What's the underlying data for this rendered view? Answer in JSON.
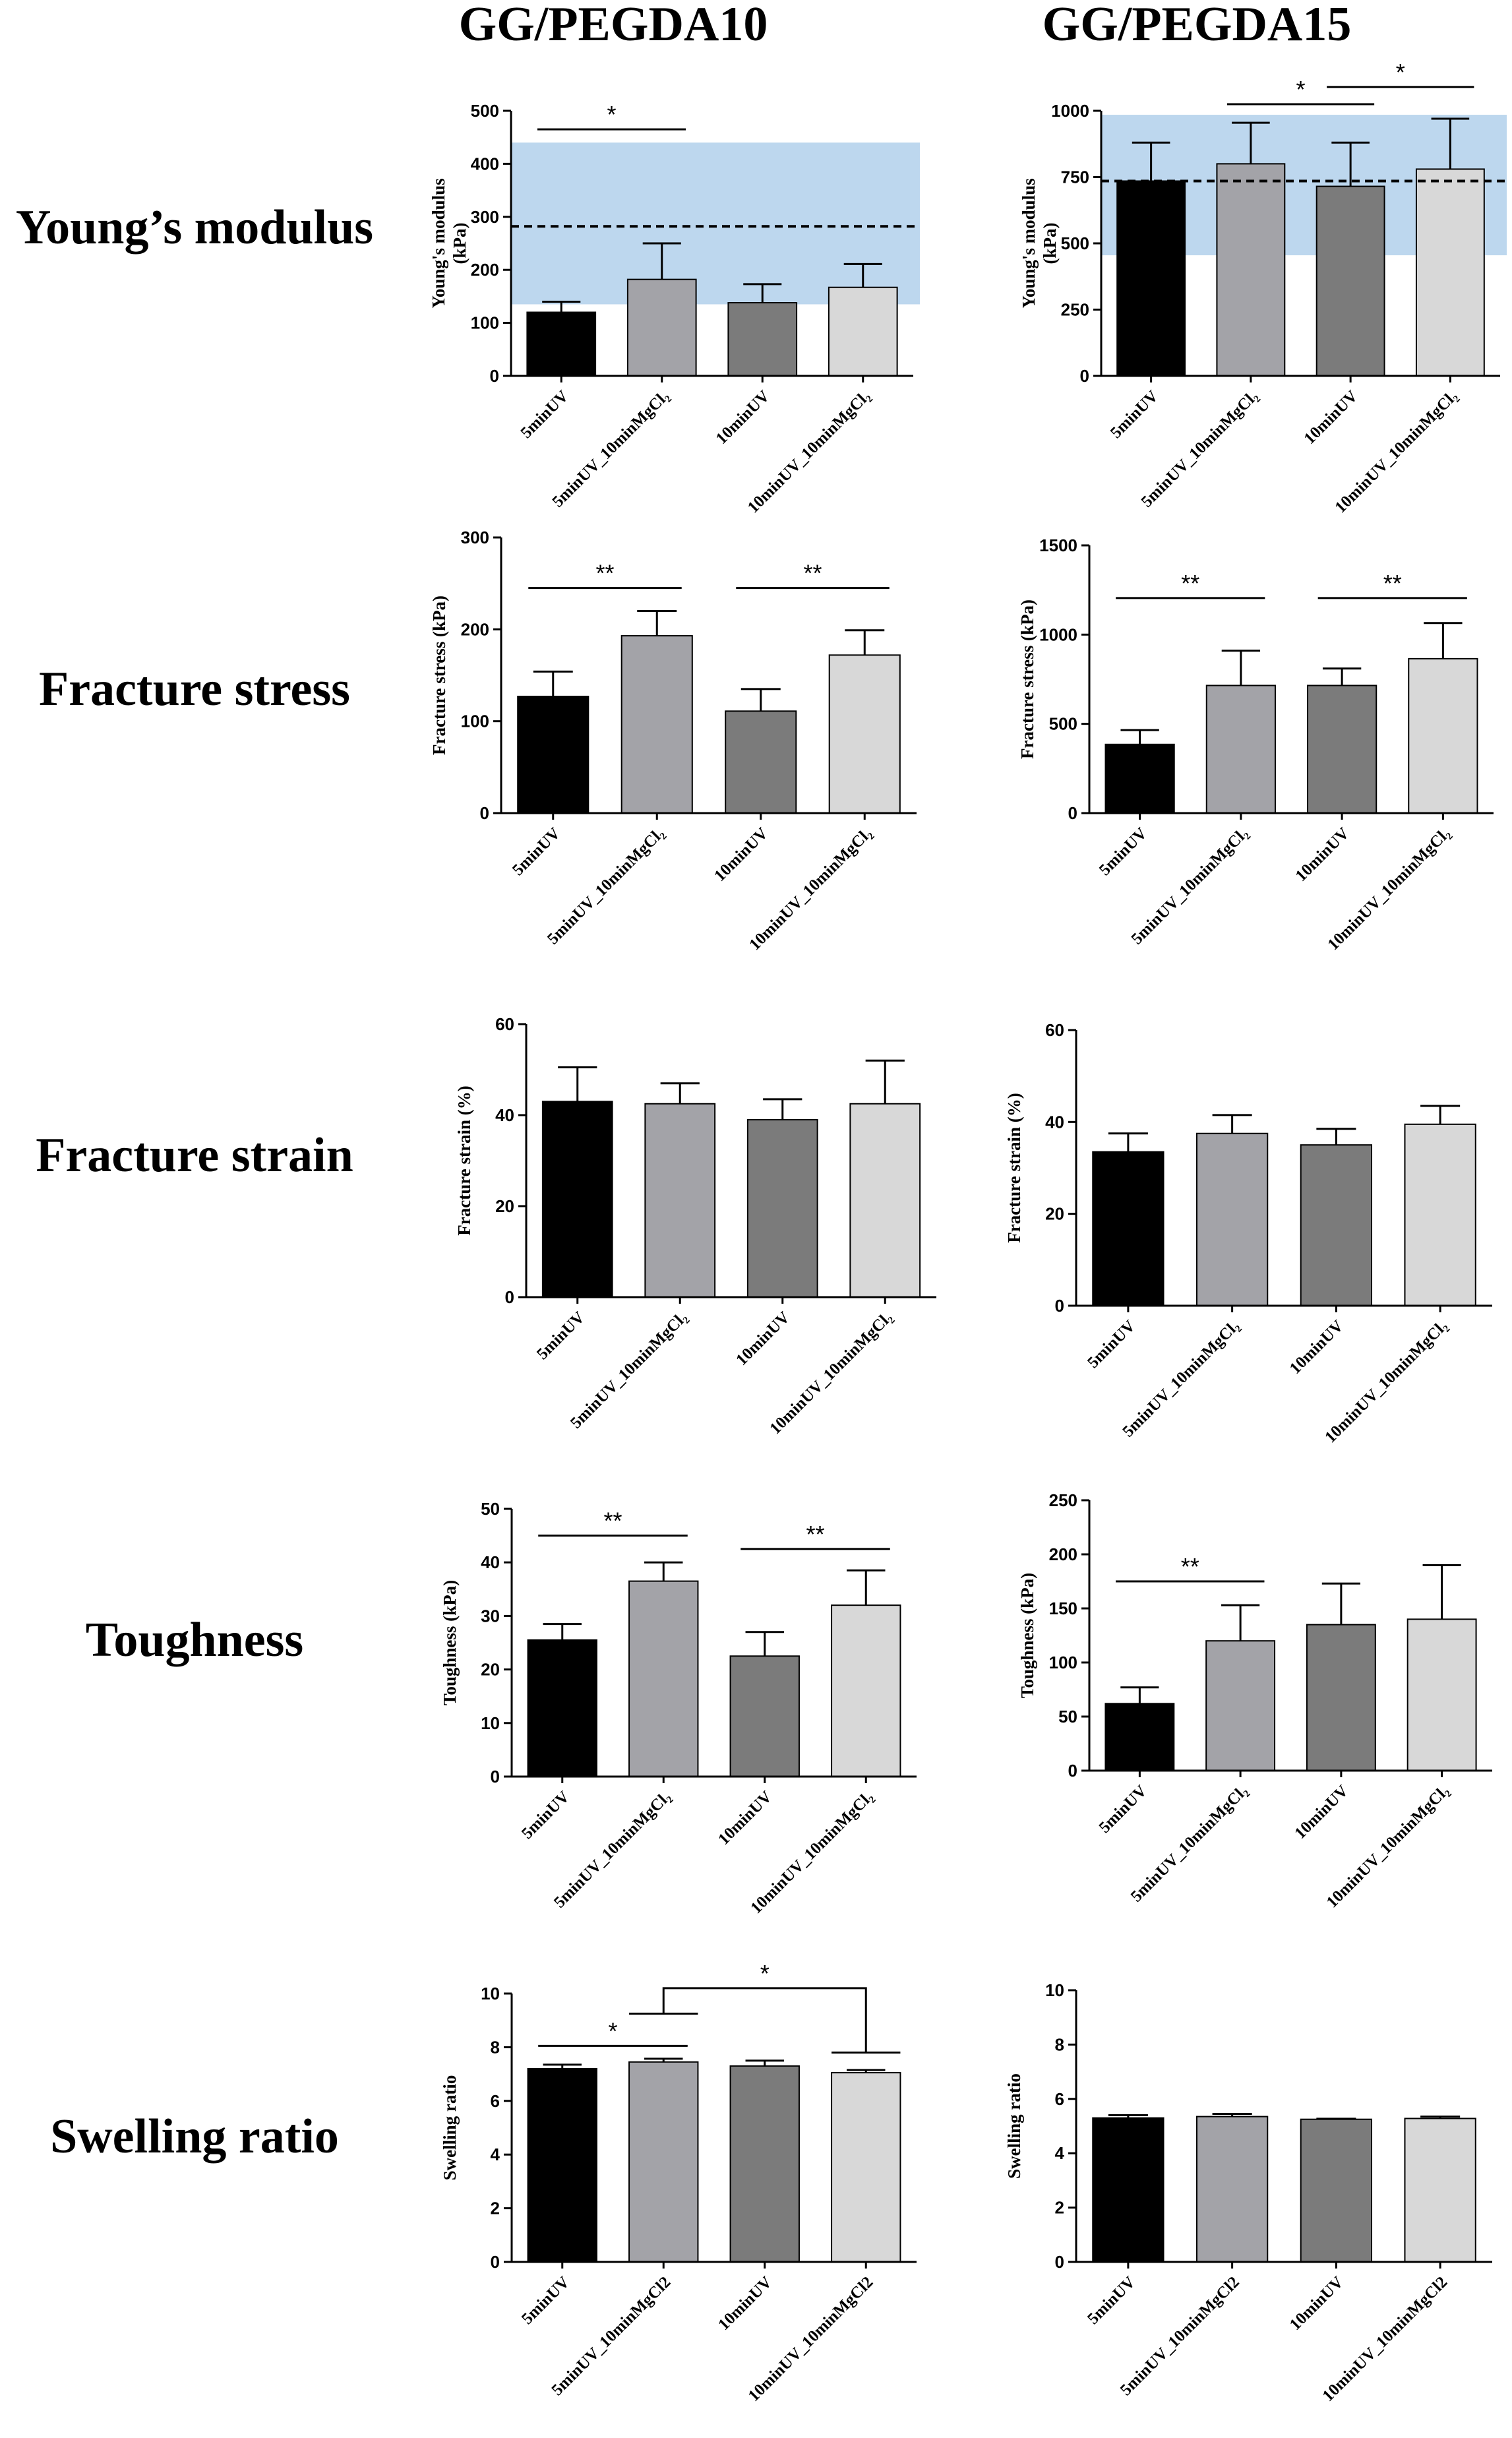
{
  "columns": [
    "GG/PEGDA10",
    "GG/PEGDA15"
  ],
  "rows": [
    "Young’s modulus",
    "Fracture stress",
    "Fracture strain",
    "Toughness",
    "Swelling ratio"
  ],
  "colors": {
    "bar1": "#000000",
    "bar2": "#a3a3a8",
    "bar3": "#7b7b7b",
    "bar4": "#d8d8d8",
    "band": "#bdd7ee"
  },
  "chart_data": [
    {
      "id": "ym10",
      "type": "bar",
      "row": "Young’s modulus",
      "column": "GG/PEGDA10",
      "ylabel": [
        "Young's modulus",
        "(kPa)"
      ],
      "ylim": [
        0,
        500
      ],
      "yticks": [
        0,
        100,
        200,
        300,
        400,
        500
      ],
      "categories": [
        "5minUV",
        "5minUV_10minMgCl₂",
        "10minUV",
        "10minUV_10minMgCl₂"
      ],
      "values": [
        120,
        182,
        138,
        167
      ],
      "errors": [
        20,
        68,
        35,
        44
      ],
      "reference_band": [
        135,
        440
      ],
      "reference_line": 282,
      "significance": [
        {
          "from": 0,
          "to": 1,
          "label": "*",
          "y": 465
        }
      ]
    },
    {
      "id": "ym15",
      "type": "bar",
      "row": "Young’s modulus",
      "column": "GG/PEGDA15",
      "ylabel": [
        "Young's modulus",
        "(kPa)"
      ],
      "ylim": [
        0,
        1000
      ],
      "yticks": [
        0,
        250,
        500,
        750,
        1000
      ],
      "categories": [
        "5minUV",
        "5minUV_10minMgCl₂",
        "10minUV",
        "10minUV_10minMgCl₂"
      ],
      "values": [
        735,
        800,
        715,
        780
      ],
      "errors": [
        145,
        155,
        165,
        190
      ],
      "reference_band": [
        455,
        985
      ],
      "reference_line": 735,
      "significance": [
        {
          "from": 1,
          "to": 2,
          "label": "*",
          "y": 1025
        },
        {
          "from": 2,
          "to": 3,
          "label": "*",
          "y": 1090
        }
      ]
    },
    {
      "id": "fs10",
      "type": "bar",
      "row": "Fracture stress",
      "column": "GG/PEGDA10",
      "ylabel": [
        "Fracture stress (kPa)"
      ],
      "ylim": [
        0,
        300
      ],
      "yticks": [
        0,
        100,
        200,
        300
      ],
      "categories": [
        "5minUV",
        "5minUV_10minMgCl₂",
        "10minUV",
        "10minUV_10minMgCl₂"
      ],
      "values": [
        127,
        193,
        111,
        172
      ],
      "errors": [
        27,
        27,
        24,
        27
      ],
      "significance": [
        {
          "from": 0,
          "to": 1,
          "label": "**",
          "y": 245
        },
        {
          "from": 2,
          "to": 3,
          "label": "**",
          "y": 245
        }
      ]
    },
    {
      "id": "fs15",
      "type": "bar",
      "row": "Fracture stress",
      "column": "GG/PEGDA15",
      "ylabel": [
        "Fracture stress (kPa)"
      ],
      "ylim": [
        0,
        1500
      ],
      "yticks": [
        0,
        500,
        1000,
        1500
      ],
      "categories": [
        "5minUV",
        "5minUV_10minMgCl₂",
        "10minUV",
        "10minUV_10minMgCl₂"
      ],
      "values": [
        385,
        715,
        715,
        865
      ],
      "errors": [
        80,
        195,
        95,
        200
      ],
      "significance": [
        {
          "from": 0,
          "to": 1,
          "label": "**",
          "y": 1205
        },
        {
          "from": 2,
          "to": 3,
          "label": "**",
          "y": 1205
        }
      ]
    },
    {
      "id": "fe10",
      "type": "bar",
      "row": "Fracture strain",
      "column": "GG/PEGDA10",
      "ylabel": [
        "Fracture strain (%)"
      ],
      "ylim": [
        0,
        60
      ],
      "yticks": [
        0,
        20,
        40,
        60
      ],
      "categories": [
        "5minUV",
        "5minUV_10minMgCl₂",
        "10minUV",
        "10minUV_10minMgCl₂"
      ],
      "values": [
        43,
        42.5,
        39,
        42.5
      ],
      "errors": [
        7.5,
        4.5,
        4.5,
        9.5
      ],
      "significance": []
    },
    {
      "id": "fe15",
      "type": "bar",
      "row": "Fracture strain",
      "column": "GG/PEGDA15",
      "ylabel": [
        "Fracture strain (%)"
      ],
      "ylim": [
        0,
        60
      ],
      "yticks": [
        0,
        20,
        40,
        60
      ],
      "categories": [
        "5minUV",
        "5minUV_10minMgCl₂",
        "10minUV",
        "10minUV_10minMgCl₂"
      ],
      "values": [
        33.5,
        37.5,
        35,
        39.5
      ],
      "errors": [
        4,
        4,
        3.5,
        4
      ],
      "significance": []
    },
    {
      "id": "tg10",
      "type": "bar",
      "row": "Toughness",
      "column": "GG/PEGDA10",
      "ylabel": [
        "Toughness (kPa)"
      ],
      "ylim": [
        0,
        50
      ],
      "yticks": [
        0,
        10,
        20,
        30,
        40,
        50
      ],
      "categories": [
        "5minUV",
        "5minUV_10minMgCl₂",
        "10minUV",
        "10minUV_10minMgCl₂"
      ],
      "values": [
        25.5,
        36.5,
        22.5,
        32
      ],
      "errors": [
        3,
        3.5,
        4.5,
        6.5
      ],
      "significance": [
        {
          "from": 0,
          "to": 1,
          "label": "**",
          "y": 45
        },
        {
          "from": 2,
          "to": 3,
          "label": "**",
          "y": 42.5
        }
      ]
    },
    {
      "id": "tg15",
      "type": "bar",
      "row": "Toughness",
      "column": "GG/PEGDA15",
      "ylabel": [
        "Toughness (kPa)"
      ],
      "ylim": [
        0,
        250
      ],
      "yticks": [
        0,
        50,
        100,
        150,
        200,
        250
      ],
      "categories": [
        "5minUV",
        "5minUV_10minMgCl₂",
        "10minUV",
        "10minUV_10minMgCl₂"
      ],
      "values": [
        62,
        120,
        135,
        140
      ],
      "errors": [
        15,
        33,
        38,
        50
      ],
      "significance": [
        {
          "from": 0,
          "to": 1,
          "label": "**",
          "y": 175
        }
      ]
    },
    {
      "id": "sw10",
      "type": "bar",
      "row": "Swelling ratio",
      "column": "GG/PEGDA10",
      "ylabel": [
        "Swelling ratio"
      ],
      "ylim": [
        0,
        10
      ],
      "yticks": [
        0,
        2,
        4,
        6,
        8,
        10
      ],
      "categories": [
        "5minUV",
        "5minUV_10minMgCl2",
        "10minUV",
        "10minUV_10minMgCl2"
      ],
      "values": [
        7.2,
        7.45,
        7.3,
        7.05
      ],
      "errors": [
        0.15,
        0.12,
        0.2,
        0.1
      ],
      "significance": [
        {
          "from": 0,
          "to": 1,
          "label": "*",
          "y": 8.05
        },
        {
          "type": "bracket",
          "from": 1,
          "to": 3,
          "label": "*",
          "y": 10.2,
          "drop_from": 9.25,
          "drop_to": 7.8
        }
      ]
    },
    {
      "id": "sw15",
      "type": "bar",
      "row": "Swelling ratio",
      "column": "GG/PEGDA15",
      "ylabel": [
        "Swelling ratio"
      ],
      "ylim": [
        0,
        10
      ],
      "yticks": [
        0,
        2,
        4,
        6,
        8,
        10
      ],
      "categories": [
        "5minUV",
        "5minUV_10minMgCl2",
        "10minUV",
        "10minUV_10minMgCl2"
      ],
      "values": [
        5.3,
        5.35,
        5.25,
        5.28
      ],
      "errors": [
        0.1,
        0.1,
        0.02,
        0.07
      ],
      "significance": []
    }
  ]
}
